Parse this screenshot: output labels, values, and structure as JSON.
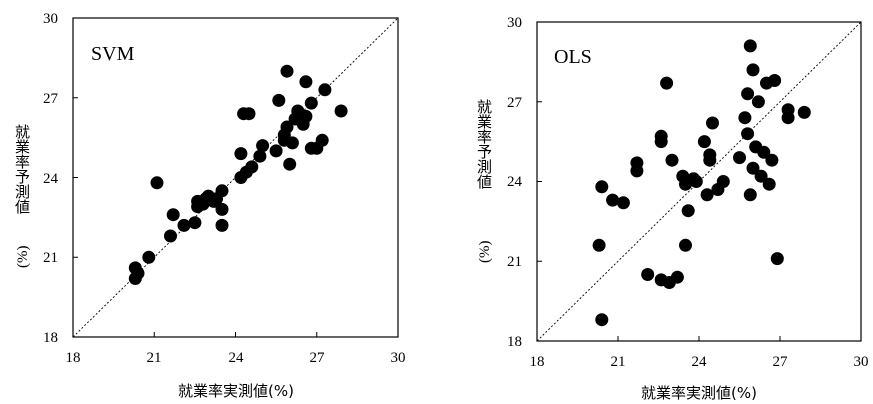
{
  "chart_data": [
    {
      "type": "scatter",
      "title": "SVM",
      "xlabel": "就業率実測値(%)",
      "ylabel_main": "就業率予測値",
      "ylabel_unit": "(%)",
      "xlim": [
        18,
        30
      ],
      "ylim": [
        18,
        30
      ],
      "xticks": [
        "18",
        "21",
        "24",
        "27",
        "30"
      ],
      "yticks": [
        "18",
        "21",
        "24",
        "27",
        "30"
      ],
      "reference_line": "y = x (dashed)",
      "grid": false,
      "x": [
        20.3,
        20.4,
        20.3,
        20.8,
        21.1,
        21.6,
        21.7,
        22.1,
        22.5,
        22.6,
        22.6,
        22.7,
        22.8,
        22.9,
        23.0,
        23.2,
        23.3,
        23.5,
        23.5,
        23.5,
        24.2,
        24.2,
        24.3,
        24.4,
        24.5,
        24.6,
        24.9,
        25.0,
        25.5,
        25.6,
        25.8,
        25.8,
        25.9,
        25.9,
        26.0,
        26.1,
        26.2,
        26.3,
        26.5,
        26.6,
        26.6,
        26.8,
        26.8,
        27.0,
        27.2,
        27.3,
        27.9
      ],
      "y": [
        20.2,
        20.4,
        20.6,
        21.0,
        23.8,
        21.8,
        22.6,
        22.2,
        22.3,
        22.9,
        23.1,
        23.0,
        23.0,
        23.2,
        23.3,
        23.1,
        23.2,
        23.5,
        22.8,
        22.2,
        24.9,
        24.0,
        26.4,
        24.2,
        26.4,
        24.4,
        24.8,
        25.2,
        25.0,
        26.9,
        25.6,
        25.4,
        25.9,
        28.0,
        24.5,
        25.3,
        26.2,
        26.5,
        26.0,
        27.6,
        26.3,
        25.1,
        26.8,
        25.1,
        25.4,
        27.3,
        26.5
      ]
    },
    {
      "type": "scatter",
      "title": "OLS",
      "xlabel": "就業率実測値(%)",
      "ylabel_main": "就業率予測値",
      "ylabel_unit": "(%)",
      "xlim": [
        18,
        30
      ],
      "ylim": [
        18,
        30
      ],
      "xticks": [
        "18",
        "21",
        "24",
        "27",
        "30"
      ],
      "yticks": [
        "18",
        "21",
        "24",
        "27",
        "30"
      ],
      "reference_line": "y = x (dashed)",
      "grid": false,
      "x": [
        20.3,
        20.4,
        20.4,
        20.8,
        21.2,
        21.7,
        21.7,
        22.1,
        22.6,
        22.6,
        22.6,
        22.8,
        22.9,
        23.0,
        23.2,
        23.4,
        23.5,
        23.5,
        23.6,
        23.8,
        23.9,
        24.2,
        24.3,
        24.4,
        24.4,
        24.5,
        24.7,
        24.9,
        25.5,
        25.7,
        25.8,
        25.8,
        25.9,
        25.9,
        26.0,
        26.0,
        26.1,
        26.2,
        26.3,
        26.4,
        26.5,
        26.6,
        26.7,
        26.8,
        26.9,
        27.3,
        27.3,
        27.9
      ],
      "y": [
        21.6,
        23.8,
        18.8,
        23.3,
        23.2,
        24.7,
        24.4,
        20.5,
        20.3,
        25.7,
        25.5,
        27.7,
        20.2,
        24.8,
        20.4,
        24.2,
        23.9,
        21.6,
        22.9,
        24.1,
        24.0,
        25.5,
        23.5,
        25.0,
        24.8,
        26.2,
        23.7,
        24.0,
        24.9,
        26.4,
        27.3,
        25.8,
        23.5,
        29.1,
        28.2,
        24.5,
        25.3,
        27.0,
        24.2,
        25.1,
        27.7,
        23.9,
        24.8,
        27.8,
        21.1,
        26.7,
        26.4,
        26.6
      ]
    }
  ]
}
